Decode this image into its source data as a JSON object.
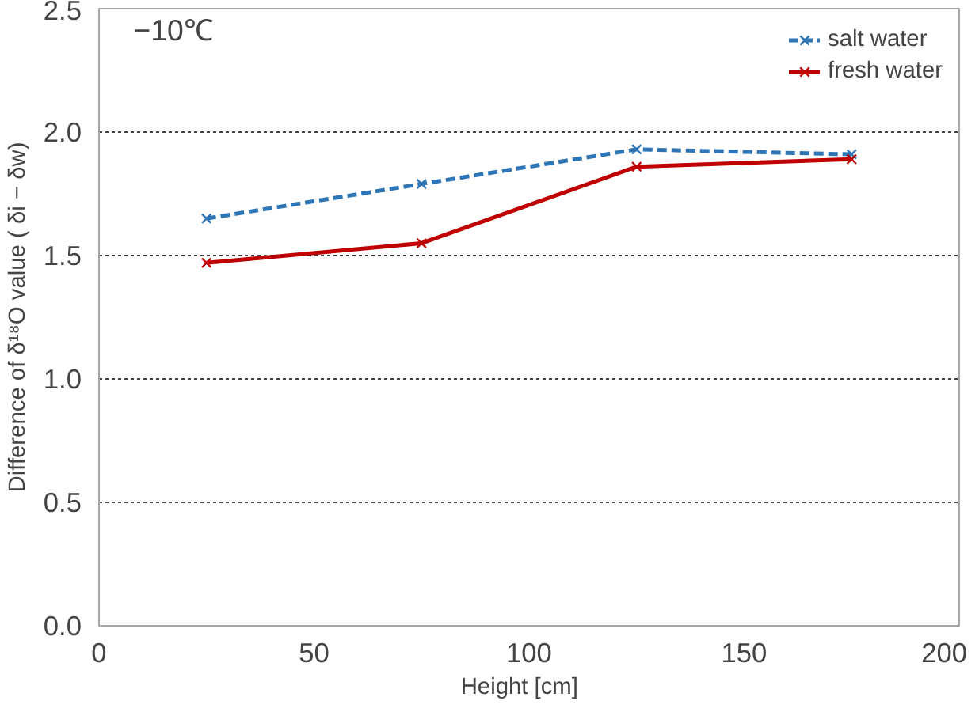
{
  "chart_data": {
    "type": "line",
    "xlabel": "Height    [cm]",
    "ylabel": "Difference of δ¹⁸O value ( δi − δw)",
    "annotations": [
      "−10℃"
    ],
    "x": [
      25,
      75,
      125,
      175
    ],
    "xlim": [
      0,
      200
    ],
    "xticks": [
      0,
      50,
      100,
      150,
      200
    ],
    "ylim": [
      0,
      2.5
    ],
    "yticks": [
      {
        "value": 0,
        "label": "0.0"
      },
      {
        "value": 0.5,
        "label": "0.5"
      },
      {
        "value": 1,
        "label": "1.0"
      },
      {
        "value": 1.5,
        "label": "1.5"
      },
      {
        "value": 2,
        "label": "2.0"
      },
      {
        "value": 2.5,
        "label": "2.5"
      }
    ],
    "grid": "y",
    "legend": "top right",
    "marker": "cross",
    "series": [
      {
        "name": "salt water",
        "color": "#2e75b6",
        "values": [
          1.65,
          1.79,
          1.93,
          1.91
        ],
        "line_style": "dashed"
      },
      {
        "name": "fresh water",
        "color": "#c00000",
        "values": [
          1.47,
          1.55,
          1.86,
          1.89
        ],
        "line_style": "solid"
      }
    ]
  }
}
